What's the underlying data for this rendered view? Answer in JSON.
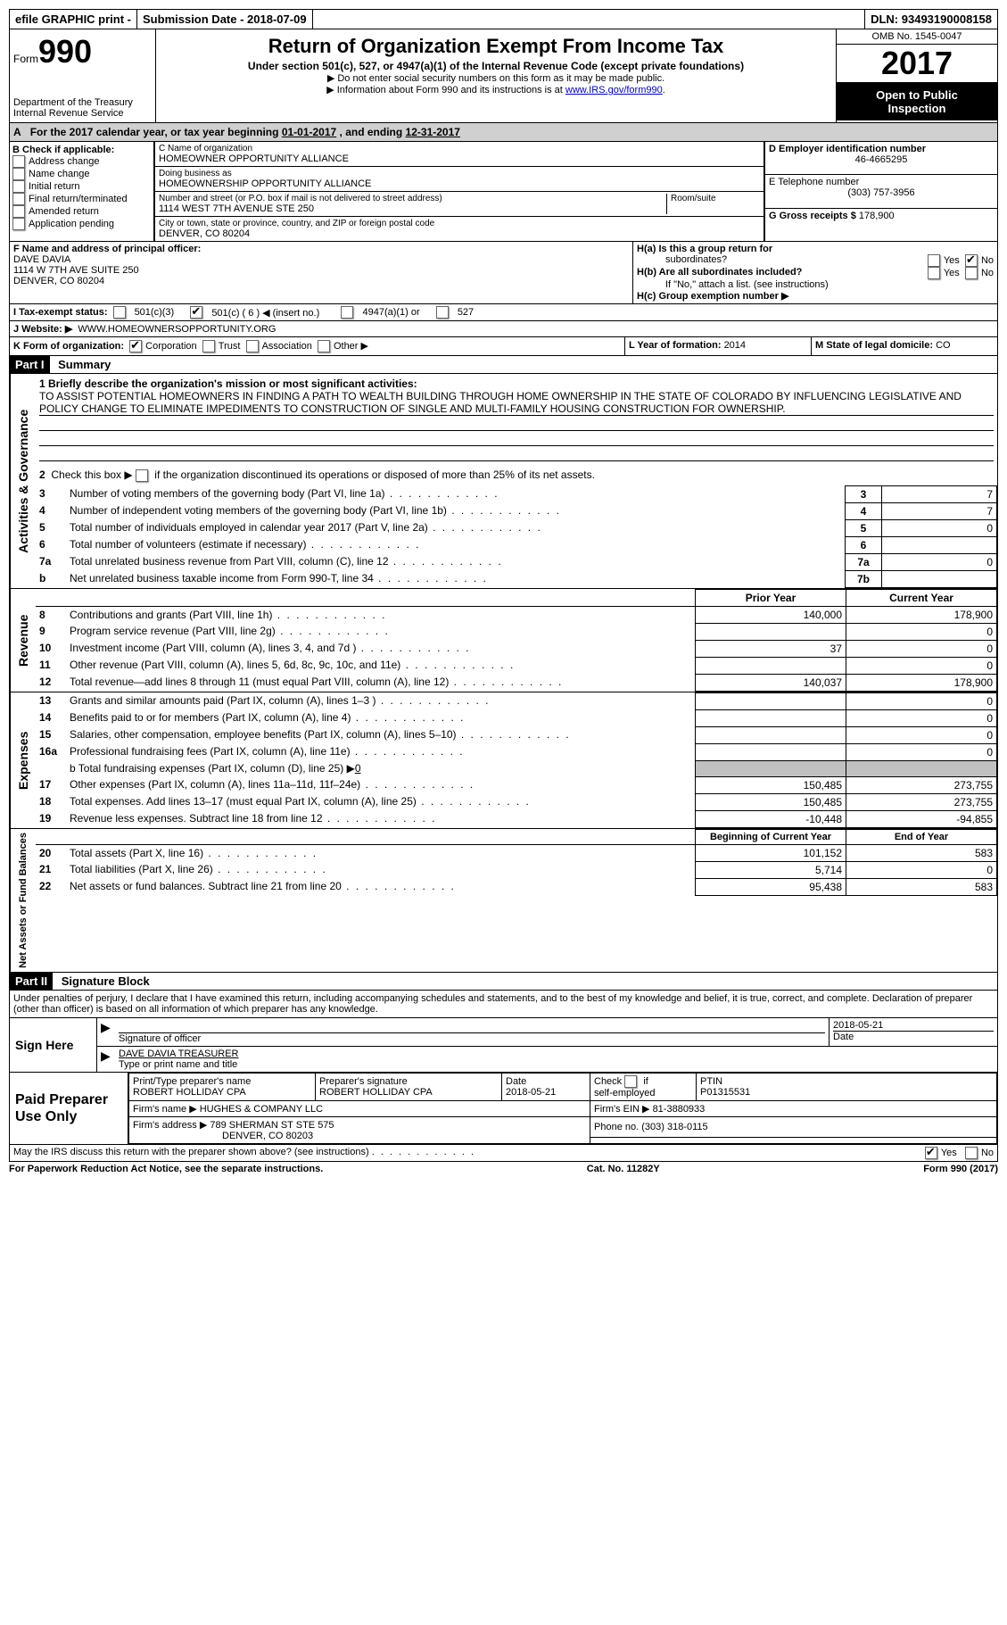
{
  "topbar": {
    "efile": "efile GRAPHIC print -",
    "submission_label": "Submission Date - ",
    "submission_date": "2018-07-09",
    "dln_label": "DLN: ",
    "dln": "93493190008158"
  },
  "header": {
    "form_label": "Form",
    "form_no": "990",
    "dept1": "Department of the Treasury",
    "dept2": "Internal Revenue Service",
    "title": "Return of Organization Exempt From Income Tax",
    "subtitle": "Under section 501(c), 527, or 4947(a)(1) of the Internal Revenue Code (except private foundations)",
    "note1": "▶ Do not enter social security numbers on this form as it may be made public.",
    "note2_a": "▶ Information about Form 990 and its instructions is at ",
    "note2_link": "www.IRS.gov/form990",
    "omb": "OMB No. 1545-0047",
    "year": "2017",
    "inspection1": "Open to Public",
    "inspection2": "Inspection"
  },
  "sectionA": {
    "prefix": "A",
    "text": "For the 2017 calendar year, or tax year beginning ",
    "begin": "01-01-2017",
    "mid": " , and ending ",
    "end": "12-31-2017"
  },
  "colB": {
    "label": "B Check if applicable:",
    "items": [
      "Address change",
      "Name change",
      "Initial return",
      "Final return/terminated",
      "Amended return",
      "Application pending"
    ]
  },
  "colC": {
    "name_label": "C Name of organization",
    "name": "HOMEOWNER OPPORTUNITY ALLIANCE",
    "dba_label": "Doing business as",
    "dba": "HOMEOWNERSHIP OPPORTUNITY ALLIANCE",
    "street_label": "Number and street (or P.O. box if mail is not delivered to street address)",
    "room_label": "Room/suite",
    "street": "1114 WEST 7TH AVENUE STE 250",
    "city_label": "City or town, state or province, country, and ZIP or foreign postal code",
    "city": "DENVER, CO  80204"
  },
  "colD": {
    "ein_label": "D Employer identification number",
    "ein": "46-4665295",
    "phone_label": "E Telephone number",
    "phone": "(303) 757-3956",
    "gross_label": "G Gross receipts $ ",
    "gross": "178,900"
  },
  "colF": {
    "label": "F Name and address of principal officer:",
    "name": "DAVE DAVIA",
    "addr1": "1114 W 7TH AVE SUITE 250",
    "addr2": "DENVER, CO  80204"
  },
  "colH": {
    "ha": "H(a)  Is this a group return for",
    "ha2": "subordinates?",
    "hb": "H(b)  Are all subordinates included?",
    "hb2": "If \"No,\" attach a list. (see instructions)",
    "hc": "H(c)  Group exemption number ▶",
    "yes": "Yes",
    "no": "No"
  },
  "rowI": {
    "label": "I  Tax-exempt status:",
    "opt1": "501(c)(3)",
    "opt2": "501(c) ( 6 ) ◀ (insert no.)",
    "opt3": "4947(a)(1) or",
    "opt4": "527"
  },
  "rowJ": {
    "label": "J  Website: ▶",
    "value": "WWW.HOMEOWNERSOPPORTUNITY.ORG"
  },
  "rowK": {
    "label": "K Form of organization:",
    "opt1": "Corporation",
    "opt2": "Trust",
    "opt3": "Association",
    "opt4": "Other ▶",
    "L_label": "L Year of formation: ",
    "L_val": "2014",
    "M_label": "M State of legal domicile: ",
    "M_val": "CO"
  },
  "part1": {
    "header": "Part I",
    "title": "Summary"
  },
  "governance": {
    "side": "Activities & Governance",
    "l1": "1  Briefly describe the organization's mission or most significant activities:",
    "mission": "TO ASSIST POTENTIAL HOMEOWNERS IN FINDING A PATH TO WEALTH BUILDING THROUGH HOME OWNERSHIP IN THE STATE OF COLORADO BY INFLUENCING LEGISLATIVE AND POLICY CHANGE TO ELIMINATE IMPEDIMENTS TO CONSTRUCTION OF SINGLE AND MULTI-FAMILY HOUSING CONSTRUCTION FOR OWNERSHIP.",
    "l2": "2  Check this box ▶        if the organization discontinued its operations or disposed of more than 25% of its net assets.",
    "rows": [
      {
        "n": "3",
        "desc": "Number of voting members of the governing body (Part VI, line 1a)",
        "box": "3",
        "val": "7"
      },
      {
        "n": "4",
        "desc": "Number of independent voting members of the governing body (Part VI, line 1b)",
        "box": "4",
        "val": "7"
      },
      {
        "n": "5",
        "desc": "Total number of individuals employed in calendar year 2017 (Part V, line 2a)",
        "box": "5",
        "val": "0"
      },
      {
        "n": "6",
        "desc": "Total number of volunteers (estimate if necessary)",
        "box": "6",
        "val": ""
      },
      {
        "n": "7a",
        "desc": "Total unrelated business revenue from Part VIII, column (C), line 12",
        "box": "7a",
        "val": "0"
      },
      {
        "n": "b",
        "desc": "Net unrelated business taxable income from Form 990-T, line 34",
        "box": "7b",
        "val": ""
      }
    ]
  },
  "revenue": {
    "side": "Revenue",
    "h_prior": "Prior Year",
    "h_current": "Current Year",
    "rows": [
      {
        "n": "8",
        "desc": "Contributions and grants (Part VIII, line 1h)",
        "prior": "140,000",
        "curr": "178,900"
      },
      {
        "n": "9",
        "desc": "Program service revenue (Part VIII, line 2g)",
        "prior": "",
        "curr": "0"
      },
      {
        "n": "10",
        "desc": "Investment income (Part VIII, column (A), lines 3, 4, and 7d )",
        "prior": "37",
        "curr": "0"
      },
      {
        "n": "11",
        "desc": "Other revenue (Part VIII, column (A), lines 5, 6d, 8c, 9c, 10c, and 11e)",
        "prior": "",
        "curr": "0"
      },
      {
        "n": "12",
        "desc": "Total revenue—add lines 8 through 11 (must equal Part VIII, column (A), line 12)",
        "prior": "140,037",
        "curr": "178,900"
      }
    ]
  },
  "expenses": {
    "side": "Expenses",
    "rows": [
      {
        "n": "13",
        "desc": "Grants and similar amounts paid (Part IX, column (A), lines 1–3 )",
        "prior": "",
        "curr": "0"
      },
      {
        "n": "14",
        "desc": "Benefits paid to or for members (Part IX, column (A), line 4)",
        "prior": "",
        "curr": "0"
      },
      {
        "n": "15",
        "desc": "Salaries, other compensation, employee benefits (Part IX, column (A), lines 5–10)",
        "prior": "",
        "curr": "0"
      },
      {
        "n": "16a",
        "desc": "Professional fundraising fees (Part IX, column (A), line 11e)",
        "prior": "",
        "curr": "0"
      }
    ],
    "l16b": "b  Total fundraising expenses (Part IX, column (D), line 25) ▶",
    "l16b_val": "0",
    "rows2": [
      {
        "n": "17",
        "desc": "Other expenses (Part IX, column (A), lines 11a–11d, 11f–24e)",
        "prior": "150,485",
        "curr": "273,755"
      },
      {
        "n": "18",
        "desc": "Total expenses. Add lines 13–17 (must equal Part IX, column (A), line 25)",
        "prior": "150,485",
        "curr": "273,755"
      },
      {
        "n": "19",
        "desc": "Revenue less expenses. Subtract line 18 from line 12",
        "prior": "-10,448",
        "curr": "-94,855"
      }
    ]
  },
  "netassets": {
    "side": "Net Assets or Fund Balances",
    "h_begin": "Beginning of Current Year",
    "h_end": "End of Year",
    "rows": [
      {
        "n": "20",
        "desc": "Total assets (Part X, line 16)",
        "prior": "101,152",
        "curr": "583"
      },
      {
        "n": "21",
        "desc": "Total liabilities (Part X, line 26)",
        "prior": "5,714",
        "curr": "0"
      },
      {
        "n": "22",
        "desc": "Net assets or fund balances. Subtract line 21 from line 20",
        "prior": "95,438",
        "curr": "583"
      }
    ]
  },
  "part2": {
    "header": "Part II",
    "title": "Signature Block",
    "perjury": "Under penalties of perjury, I declare that I have examined this return, including accompanying schedules and statements, and to the best of my knowledge and belief, it is true, correct, and complete. Declaration of preparer (other than officer) is based on all information of which preparer has any knowledge."
  },
  "sign": {
    "label": "Sign Here",
    "sig_label": "Signature of officer",
    "date": "2018-05-21",
    "date_label": "Date",
    "name": "DAVE DAVIA TREASURER",
    "name_label": "Type or print name and title"
  },
  "preparer": {
    "label": "Paid Preparer Use Only",
    "print_label": "Print/Type preparer's name",
    "print_name": "ROBERT HOLLIDAY CPA",
    "sig_label": "Preparer's signature",
    "sig_name": "ROBERT HOLLIDAY CPA",
    "date_label": "Date",
    "date": "2018-05-21",
    "check_label": "Check",
    "if_label": "if",
    "self_label": "self-employed",
    "ptin_label": "PTIN",
    "ptin": "P01315531",
    "firm_name_label": "Firm's name     ▶ ",
    "firm_name": "HUGHES & COMPANY LLC",
    "firm_ein_label": "Firm's EIN ▶ ",
    "firm_ein": "81-3880933",
    "firm_addr_label": "Firm's address ▶ ",
    "firm_addr1": "789 SHERMAN ST STE 575",
    "firm_addr2": "DENVER, CO  80203",
    "phone_label": "Phone no. ",
    "phone": "(303) 318-0115"
  },
  "footer": {
    "discuss": "May the IRS discuss this return with the preparer shown above? (see instructions)",
    "yes": "Yes",
    "no": "No",
    "paperwork": "For Paperwork Reduction Act Notice, see the separate instructions.",
    "cat": "Cat. No. 11282Y",
    "form": "Form 990 (2017)"
  }
}
